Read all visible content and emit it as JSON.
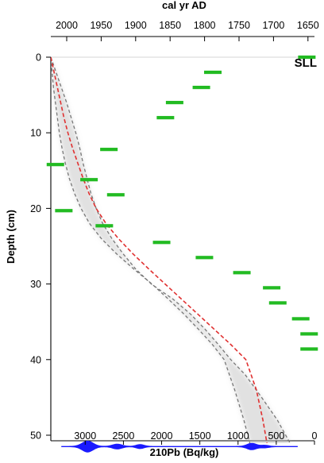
{
  "chart_data": {
    "type": "scatter",
    "title": "",
    "site_label": "SLL",
    "xlabel_bottom": "210Pb (Bq/kg)",
    "xlabel_top": "cal yr AD",
    "ylabel": "Depth (cm)",
    "xlim_bottom": [
      3450,
      0
    ],
    "bottom_ticks": [
      3000,
      2500,
      2000,
      1500,
      1000,
      500,
      0
    ],
    "top_ticks": [
      2000,
      1950,
      1900,
      1850,
      1800,
      1750,
      1700,
      1650
    ],
    "top_axis_domain": [
      2021,
      1634
    ],
    "ylim": [
      0,
      56
    ],
    "y_ticks": [
      0,
      10,
      20,
      30,
      40,
      50
    ],
    "colors": {
      "data_bars": "#22bb22",
      "median": "#e03030",
      "envelope": "#777777",
      "calib_distribution": "#1a1aff"
    },
    "series": [
      {
        "role": "green-bars",
        "points": [
          {
            "x": 1330,
            "y": 2
          },
          {
            "x": 1480,
            "y": 4
          },
          {
            "x": 1830,
            "y": 6
          },
          {
            "x": 1950,
            "y": 8
          },
          {
            "x": 2690,
            "y": 12.2
          },
          {
            "x": 3390,
            "y": 14.2
          },
          {
            "x": 2950,
            "y": 16.2
          },
          {
            "x": 2600,
            "y": 18.2
          },
          {
            "x": 3280,
            "y": 20.3
          },
          {
            "x": 2750,
            "y": 22.3
          },
          {
            "x": 2000,
            "y": 24.5
          },
          {
            "x": 1440,
            "y": 26.5
          },
          {
            "x": 950,
            "y": 28.5
          },
          {
            "x": 560,
            "y": 30.5
          },
          {
            "x": 480,
            "y": 32.5
          },
          {
            "x": 180,
            "y": 34.6
          },
          {
            "x": 70,
            "y": 36.6
          },
          {
            "x": 70,
            "y": 38.6
          },
          {
            "x": 100,
            "y": 0
          }
        ]
      },
      {
        "role": "red-median",
        "points": [
          {
            "x": 2021,
            "y": 0
          },
          {
            "x": 2016,
            "y": 2
          },
          {
            "x": 2011,
            "y": 4
          },
          {
            "x": 2006,
            "y": 6
          },
          {
            "x": 2001,
            "y": 8
          },
          {
            "x": 1995,
            "y": 10
          },
          {
            "x": 1988,
            "y": 12
          },
          {
            "x": 1980,
            "y": 14
          },
          {
            "x": 1972,
            "y": 16
          },
          {
            "x": 1963,
            "y": 18
          },
          {
            "x": 1952,
            "y": 20
          },
          {
            "x": 1937,
            "y": 22
          },
          {
            "x": 1918,
            "y": 24
          },
          {
            "x": 1896,
            "y": 26
          },
          {
            "x": 1872,
            "y": 28
          },
          {
            "x": 1847,
            "y": 30
          },
          {
            "x": 1822,
            "y": 32
          },
          {
            "x": 1797,
            "y": 34
          },
          {
            "x": 1772,
            "y": 36
          },
          {
            "x": 1747,
            "y": 38
          },
          {
            "x": 1724,
            "y": 40
          },
          {
            "x": 1708,
            "y": 44
          },
          {
            "x": 1698,
            "y": 48
          },
          {
            "x": 1690,
            "y": 52
          },
          {
            "x": 1685,
            "y": 54.5
          }
        ]
      },
      {
        "role": "grey-envelope-upper",
        "points": [
          {
            "x": 2021,
            "y": 0
          },
          {
            "x": 2013,
            "y": 2
          },
          {
            "x": 2005,
            "y": 4
          },
          {
            "x": 1997,
            "y": 6
          },
          {
            "x": 1990,
            "y": 8
          },
          {
            "x": 1983,
            "y": 10
          },
          {
            "x": 1977,
            "y": 12
          },
          {
            "x": 1972,
            "y": 14
          },
          {
            "x": 1966,
            "y": 16
          },
          {
            "x": 1960,
            "y": 18
          },
          {
            "x": 1952,
            "y": 20
          },
          {
            "x": 1942,
            "y": 22
          },
          {
            "x": 1928,
            "y": 24
          },
          {
            "x": 1911,
            "y": 26
          },
          {
            "x": 1892,
            "y": 28
          },
          {
            "x": 1868,
            "y": 30
          },
          {
            "x": 1835,
            "y": 32
          },
          {
            "x": 1808,
            "y": 34
          },
          {
            "x": 1786,
            "y": 36
          },
          {
            "x": 1766,
            "y": 38
          },
          {
            "x": 1747,
            "y": 40
          },
          {
            "x": 1725,
            "y": 42
          },
          {
            "x": 1700,
            "y": 45
          },
          {
            "x": 1676,
            "y": 48
          },
          {
            "x": 1657,
            "y": 51
          },
          {
            "x": 1640,
            "y": 54.2
          }
        ]
      },
      {
        "role": "grey-envelope-lower",
        "points": [
          {
            "x": 2021,
            "y": 0
          },
          {
            "x": 2019,
            "y": 2
          },
          {
            "x": 2017,
            "y": 4
          },
          {
            "x": 2014,
            "y": 6
          },
          {
            "x": 2011,
            "y": 8
          },
          {
            "x": 2008,
            "y": 10
          },
          {
            "x": 2004,
            "y": 12
          },
          {
            "x": 1999,
            "y": 14
          },
          {
            "x": 1993,
            "y": 16
          },
          {
            "x": 1985,
            "y": 18
          },
          {
            "x": 1975,
            "y": 20
          },
          {
            "x": 1962,
            "y": 22
          },
          {
            "x": 1944,
            "y": 24
          },
          {
            "x": 1921,
            "y": 26
          },
          {
            "x": 1895,
            "y": 28
          },
          {
            "x": 1867,
            "y": 30
          },
          {
            "x": 1842,
            "y": 32
          },
          {
            "x": 1818,
            "y": 34
          },
          {
            "x": 1796,
            "y": 36
          },
          {
            "x": 1775,
            "y": 38
          },
          {
            "x": 1757,
            "y": 40
          },
          {
            "x": 1741,
            "y": 44
          },
          {
            "x": 1727,
            "y": 48
          },
          {
            "x": 1715,
            "y": 52
          },
          {
            "x": 1707,
            "y": 56
          }
        ]
      }
    ],
    "calibration_distribution": {
      "depth": 51.5,
      "x_range": [
        2005,
        1645
      ],
      "peaks": [
        {
          "x": 1965,
          "height": 1.4,
          "width": 7
        },
        {
          "x": 1920,
          "height": 0.6,
          "width": 6
        },
        {
          "x": 1885,
          "height": 0.5,
          "width": 5
        },
        {
          "x": 1715,
          "height": 0.8,
          "width": 6
        },
        {
          "x": 1695,
          "height": 0.3,
          "width": 5
        }
      ]
    }
  }
}
